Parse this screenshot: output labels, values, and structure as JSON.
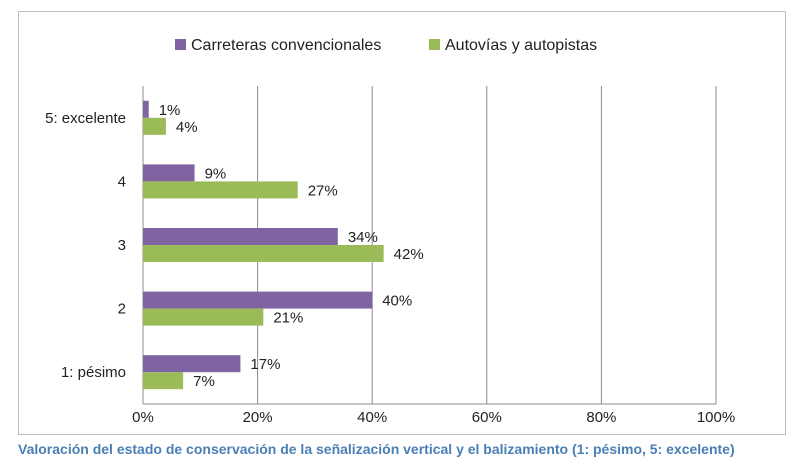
{
  "chart_data": {
    "type": "bar",
    "orientation": "horizontal",
    "categories": [
      "5: excelente",
      "4",
      "3",
      "2",
      "1: pésimo"
    ],
    "series": [
      {
        "name": "Carreteras convencionales",
        "color": "#8064a2",
        "values": [
          1,
          9,
          34,
          40,
          17
        ]
      },
      {
        "name": "Autovías y autopistas",
        "color": "#9bbb59",
        "values": [
          4,
          27,
          42,
          21,
          7
        ]
      }
    ],
    "xlim": [
      0,
      100
    ],
    "xticks": [
      0,
      20,
      40,
      60,
      80,
      100
    ],
    "value_suffix": "%",
    "grid": "vertical",
    "legend": "top",
    "gridline_color": "#8c8c8c"
  },
  "caption": "Valoración del estado de conservación de la señalización vertical y el balizamiento (1: pésimo, 5: excelente)"
}
